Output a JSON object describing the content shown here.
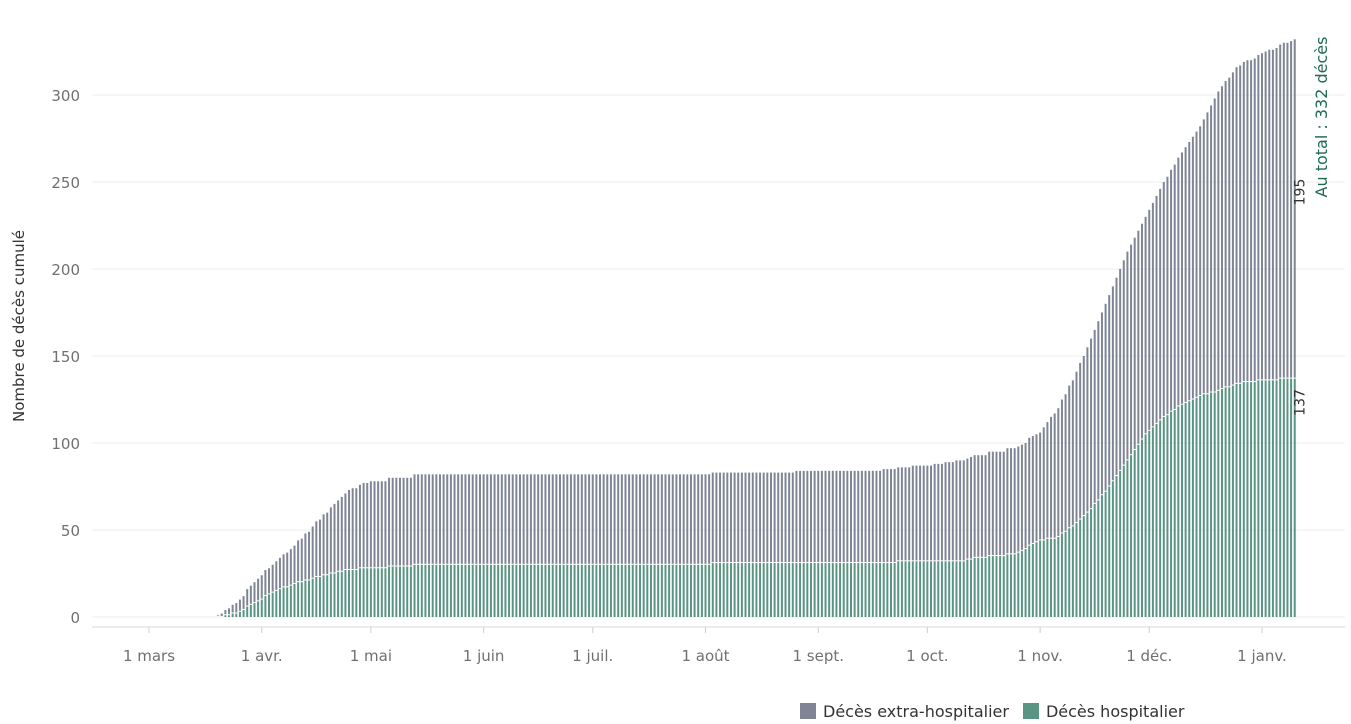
{
  "colors": {
    "extra_hospitalier": "#7f8594",
    "hospitalier": "#5a9482",
    "total_label": "#1e6b4f",
    "grid": "#ececec"
  },
  "chart_data": {
    "type": "bar",
    "stacked": true,
    "ylabel": "Nombre de décès cumulé",
    "yticks": [
      0,
      50,
      100,
      150,
      200,
      250,
      300
    ],
    "ylim": [
      -5,
      340
    ],
    "x_start": "2020-02-22",
    "x_end": "2021-01-14",
    "xticks": [
      {
        "date": "2020-03-01",
        "label": "1 mars"
      },
      {
        "date": "2020-04-01",
        "label": "1 avr."
      },
      {
        "date": "2020-05-01",
        "label": "1 mai"
      },
      {
        "date": "2020-06-01",
        "label": "1 juin"
      },
      {
        "date": "2020-07-01",
        "label": "1 juil."
      },
      {
        "date": "2020-08-01",
        "label": "1 août"
      },
      {
        "date": "2020-09-01",
        "label": "1 sept."
      },
      {
        "date": "2020-10-01",
        "label": "1 oct."
      },
      {
        "date": "2020-11-01",
        "label": "1 nov."
      },
      {
        "date": "2020-12-01",
        "label": "1 déc."
      },
      {
        "date": "2021-01-01",
        "label": "1 janv."
      }
    ],
    "grid": true,
    "legend_position": "bottom-right",
    "total_annotation": "Au total : 332 décès",
    "series": [
      {
        "name": "Décès hospitalier",
        "labels_at_date": [
          {
            "date": "2020-03-20",
            "value": 0
          },
          {
            "date": "2020-03-25",
            "value": 2
          },
          {
            "date": "2020-03-30",
            "value": 8
          },
          {
            "date": "2020-04-05",
            "value": 15
          },
          {
            "date": "2020-04-10",
            "value": 19
          },
          {
            "date": "2020-04-15",
            "value": 22
          },
          {
            "date": "2020-04-20",
            "value": 25
          },
          {
            "date": "2020-04-25",
            "value": 27
          },
          {
            "date": "2020-05-01",
            "value": 28
          },
          {
            "date": "2020-05-10",
            "value": 29
          },
          {
            "date": "2020-05-15",
            "value": 30
          },
          {
            "date": "2020-06-15",
            "value": 30
          },
          {
            "date": "2020-07-15",
            "value": 30
          },
          {
            "date": "2020-08-01",
            "value": 30
          },
          {
            "date": "2020-08-05",
            "value": 31
          },
          {
            "date": "2020-09-15",
            "value": 31
          },
          {
            "date": "2020-10-01",
            "value": 32
          },
          {
            "date": "2020-10-10",
            "value": 32
          },
          {
            "date": "2020-10-15",
            "value": 34
          },
          {
            "date": "2020-10-25",
            "value": 36
          },
          {
            "date": "2020-11-01",
            "value": 44
          },
          {
            "date": "2020-11-05",
            "value": 45
          },
          {
            "date": "2020-11-10",
            "value": 52
          },
          {
            "date": "2020-11-15",
            "value": 62
          },
          {
            "date": "2020-11-20",
            "value": 75
          },
          {
            "date": "2020-11-25",
            "value": 90
          },
          {
            "date": "2020-11-30",
            "value": 105
          },
          {
            "date": "2020-12-05",
            "value": 115
          },
          {
            "date": "2020-12-10",
            "value": 122
          },
          {
            "date": "2020-12-15",
            "value": 127
          },
          {
            "date": "2020-12-20",
            "value": 130
          },
          {
            "date": "2020-12-25",
            "value": 134
          },
          {
            "date": "2021-01-01",
            "value": 136
          },
          {
            "date": "2021-01-10",
            "value": 137
          }
        ],
        "end_label": "137"
      },
      {
        "name": "Décès extra-hospitalier",
        "labels_at_date": [
          {
            "date": "2020-03-20",
            "value": 1
          },
          {
            "date": "2020-03-25",
            "value": 6
          },
          {
            "date": "2020-03-30",
            "value": 12
          },
          {
            "date": "2020-04-05",
            "value": 17
          },
          {
            "date": "2020-04-10",
            "value": 22
          },
          {
            "date": "2020-04-15",
            "value": 30
          },
          {
            "date": "2020-04-20",
            "value": 38
          },
          {
            "date": "2020-04-25",
            "value": 46
          },
          {
            "date": "2020-05-01",
            "value": 50
          },
          {
            "date": "2020-05-10",
            "value": 51
          },
          {
            "date": "2020-05-15",
            "value": 52
          },
          {
            "date": "2020-06-15",
            "value": 52
          },
          {
            "date": "2020-07-15",
            "value": 52
          },
          {
            "date": "2020-08-01",
            "value": 52
          },
          {
            "date": "2020-08-05",
            "value": 52
          },
          {
            "date": "2020-09-15",
            "value": 53
          },
          {
            "date": "2020-10-01",
            "value": 55
          },
          {
            "date": "2020-10-10",
            "value": 58
          },
          {
            "date": "2020-10-15",
            "value": 59
          },
          {
            "date": "2020-10-25",
            "value": 61
          },
          {
            "date": "2020-11-01",
            "value": 62
          },
          {
            "date": "2020-11-05",
            "value": 72
          },
          {
            "date": "2020-11-10",
            "value": 84
          },
          {
            "date": "2020-11-15",
            "value": 98
          },
          {
            "date": "2020-11-20",
            "value": 110
          },
          {
            "date": "2020-11-25",
            "value": 120
          },
          {
            "date": "2020-11-30",
            "value": 125
          },
          {
            "date": "2020-12-05",
            "value": 135
          },
          {
            "date": "2020-12-10",
            "value": 145
          },
          {
            "date": "2020-12-15",
            "value": 155
          },
          {
            "date": "2020-12-20",
            "value": 172
          },
          {
            "date": "2020-12-25",
            "value": 182
          },
          {
            "date": "2021-01-01",
            "value": 188
          },
          {
            "date": "2021-01-10",
            "value": 195
          }
        ],
        "end_label": "195"
      }
    ]
  }
}
